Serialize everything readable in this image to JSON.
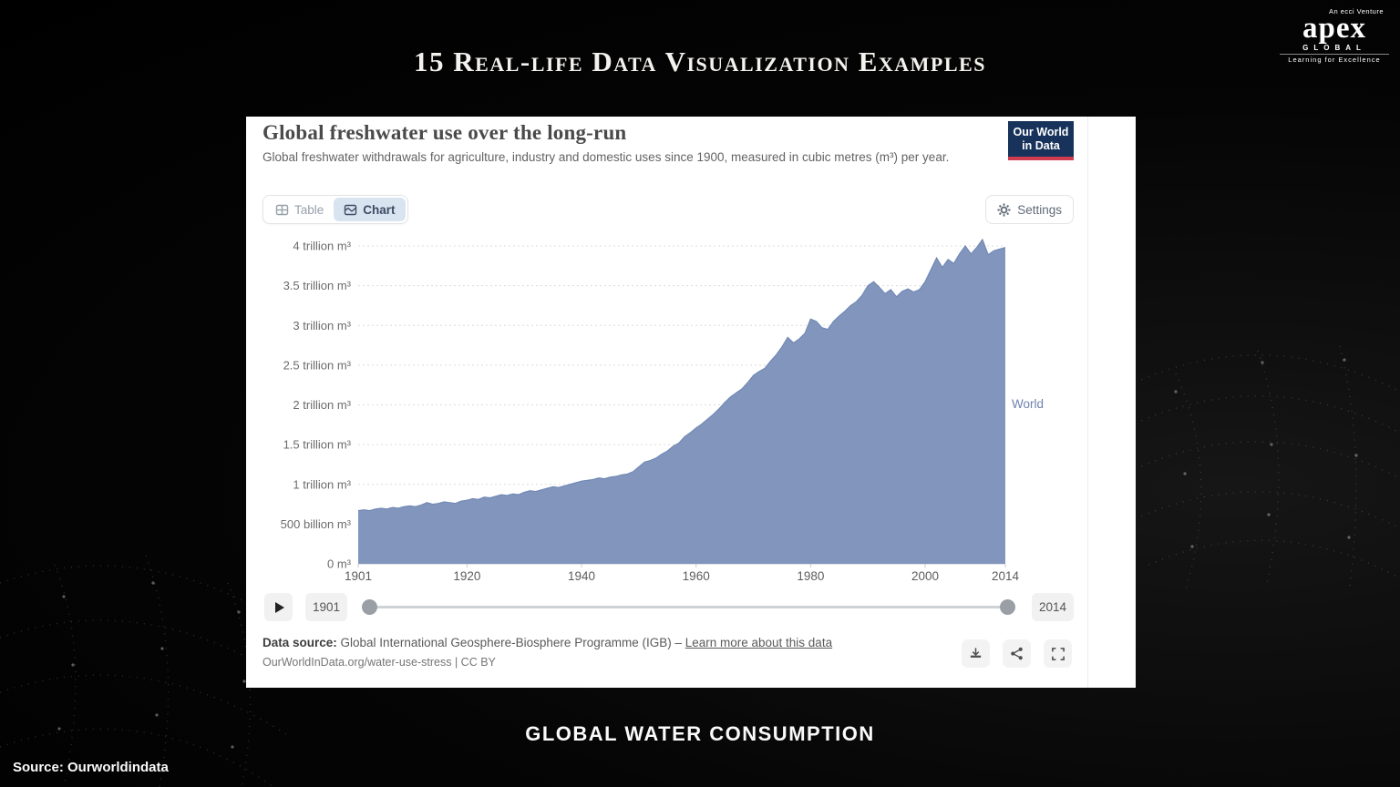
{
  "slide": {
    "title": "15 Real-life Data Visualization Examples",
    "caption": "GLOBAL WATER CONSUMPTION",
    "source": "Source: Ourworldindata",
    "logo": {
      "venture": "An ecci Venture",
      "brand": "apex",
      "global": "GLOBAL",
      "tagline": "Learning for Excellence"
    }
  },
  "chart_card": {
    "title": "Global freshwater use over the long-run",
    "subtitle": "Global freshwater withdrawals for agriculture, industry and domestic uses since 1900, measured in cubic metres (m³) per year.",
    "owid_logo": {
      "line1": "Our World",
      "line2": "in Data"
    },
    "tabs": {
      "table": "Table",
      "chart": "Chart"
    },
    "settings_label": "Settings",
    "series_label": "World",
    "timeline": {
      "start": "1901",
      "end": "2014"
    },
    "footer": {
      "datasource_label": "Data source:",
      "datasource_text": " Global International Geosphere-Biosphere Programme (IGB) – ",
      "link_text": "Learn more about this data",
      "attribution": "OurWorldInData.org/water-use-stress | CC BY"
    }
  },
  "chart_data": {
    "type": "area",
    "title": "Global freshwater use over the long-run",
    "unit": "cubic metres per year",
    "x_start": 1901,
    "x_end": 2014,
    "x_ticks": [
      1901,
      1920,
      1940,
      1960,
      1980,
      2000,
      2014
    ],
    "y_ticks": [
      {
        "value": 4,
        "label": "4 trillion m³"
      },
      {
        "value": 3.5,
        "label": "3.5 trillion m³"
      },
      {
        "value": 3,
        "label": "3 trillion m³"
      },
      {
        "value": 2.5,
        "label": "2.5 trillion m³"
      },
      {
        "value": 2,
        "label": "2 trillion m³"
      },
      {
        "value": 1.5,
        "label": "1.5 trillion m³"
      },
      {
        "value": 1,
        "label": "1 trillion m³"
      },
      {
        "value": 0.5,
        "label": "500 billion m³"
      },
      {
        "value": 0,
        "label": "0 m³"
      }
    ],
    "ylim": [
      0,
      4.17
    ],
    "grid": true,
    "legend_position": "right",
    "series": [
      {
        "name": "World",
        "unit": "trillion m³",
        "values": [
          0.67,
          0.68,
          0.67,
          0.69,
          0.7,
          0.69,
          0.71,
          0.7,
          0.72,
          0.73,
          0.72,
          0.74,
          0.77,
          0.75,
          0.76,
          0.78,
          0.77,
          0.76,
          0.79,
          0.8,
          0.82,
          0.81,
          0.84,
          0.83,
          0.85,
          0.87,
          0.86,
          0.88,
          0.87,
          0.9,
          0.92,
          0.91,
          0.93,
          0.95,
          0.97,
          0.96,
          0.98,
          1.0,
          1.02,
          1.04,
          1.05,
          1.06,
          1.08,
          1.07,
          1.09,
          1.1,
          1.12,
          1.13,
          1.16,
          1.22,
          1.28,
          1.3,
          1.33,
          1.38,
          1.42,
          1.48,
          1.52,
          1.6,
          1.65,
          1.71,
          1.76,
          1.82,
          1.88,
          1.95,
          2.03,
          2.1,
          2.15,
          2.2,
          2.28,
          2.37,
          2.42,
          2.46,
          2.55,
          2.63,
          2.73,
          2.85,
          2.78,
          2.83,
          2.9,
          3.08,
          3.05,
          2.97,
          2.95,
          3.05,
          3.12,
          3.18,
          3.25,
          3.3,
          3.38,
          3.5,
          3.55,
          3.48,
          3.4,
          3.45,
          3.36,
          3.43,
          3.46,
          3.42,
          3.45,
          3.55,
          3.7,
          3.85,
          3.73,
          3.83,
          3.78,
          3.9,
          4.0,
          3.9,
          3.98,
          4.08,
          3.89,
          3.94,
          3.96,
          3.98
        ]
      }
    ],
    "colors": {
      "area": "#8295bd",
      "line": "#7189b4",
      "grid": "#dcdcdc",
      "axis": "#c6cbd0",
      "tick_label": "#6b6b6b",
      "series_label": "#6d83ae"
    }
  }
}
